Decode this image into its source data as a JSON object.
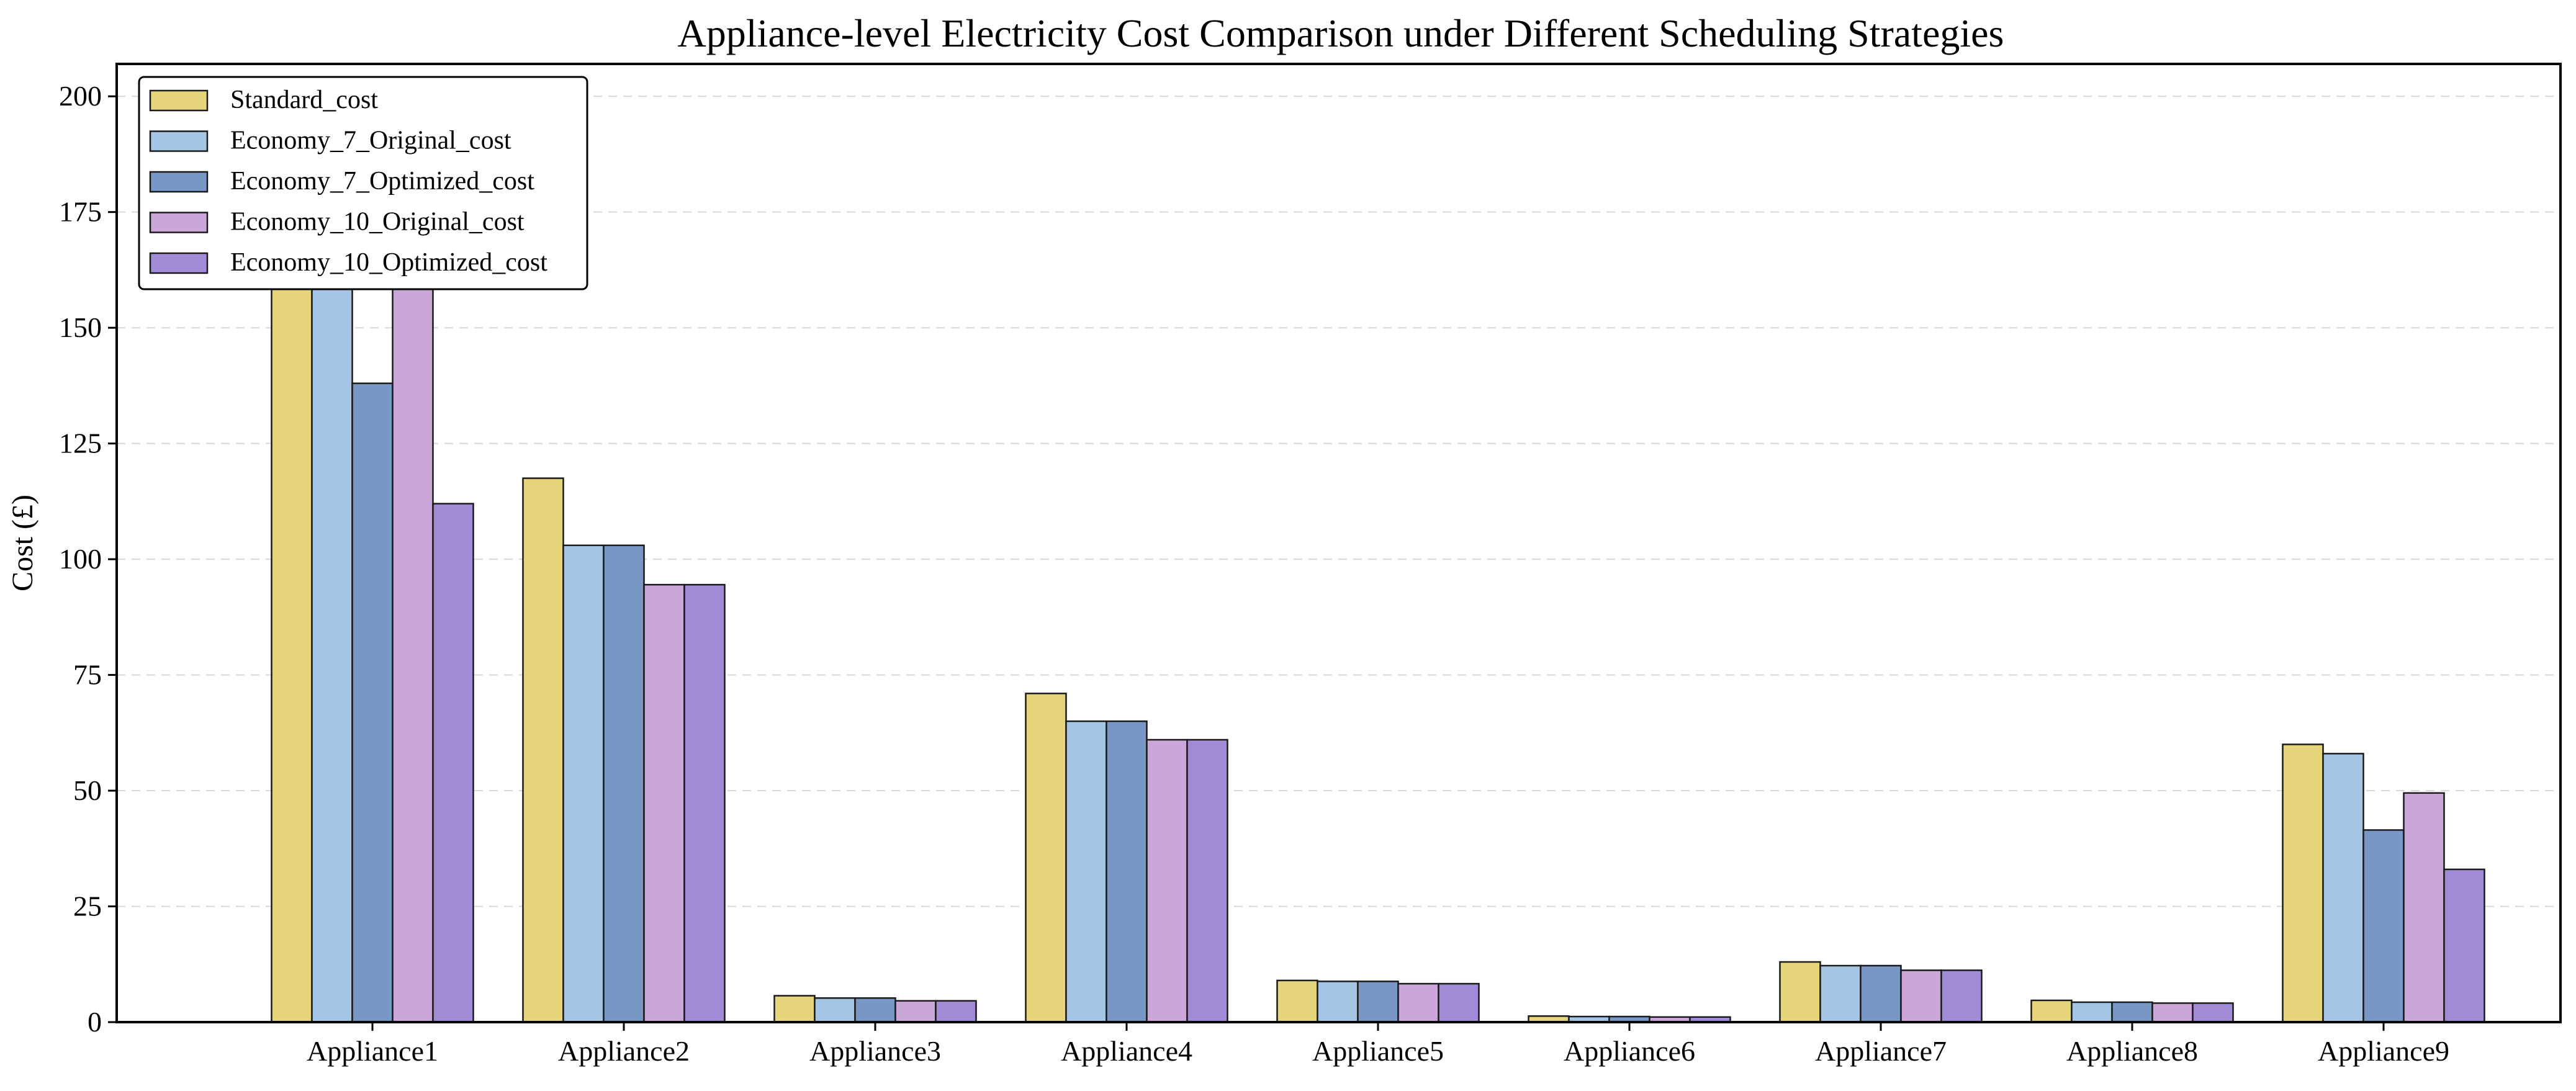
{
  "chart_data": {
    "type": "bar",
    "title": "Appliance-level Electricity Cost Comparison under Different Scheduling Strategies",
    "xlabel": "",
    "ylabel": "Cost (£)",
    "ylim": [
      0,
      207
    ],
    "yticks": [
      0,
      25,
      50,
      75,
      100,
      125,
      150,
      175,
      200
    ],
    "grid": "y dashed",
    "legend_position": "top-left",
    "categories": [
      "Appliance1",
      "Appliance2",
      "Appliance3",
      "Appliance4",
      "Appliance5",
      "Appliance6",
      "Appliance7",
      "Appliance8",
      "Appliance9"
    ],
    "series": [
      {
        "name": "Standard_cost",
        "color": "#e6d47a",
        "values": [
          195,
          117.5,
          5.7,
          71,
          9,
          1.3,
          13,
          4.7,
          60
        ]
      },
      {
        "name": "Economy_7_Original_cost",
        "color": "#a3c5e3",
        "values": [
          170,
          103,
          5.2,
          65,
          8.8,
          1.2,
          12.2,
          4.3,
          58
        ]
      },
      {
        "name": "Economy_7_Optimized_cost",
        "color": "#7897c4",
        "values": [
          138,
          103,
          5.2,
          65,
          8.8,
          1.2,
          12.2,
          4.3,
          41.5
        ]
      },
      {
        "name": "Economy_10_Original_cost",
        "color": "#cba6d9",
        "values": [
          165,
          94.5,
          4.6,
          61,
          8.3,
          1.1,
          11.2,
          4.1,
          49.5
        ]
      },
      {
        "name": "Economy_10_Optimized_cost",
        "color": "#a18bd6",
        "values": [
          112,
          94.5,
          4.6,
          61,
          8.3,
          1.1,
          11.2,
          4.1,
          33
        ]
      }
    ]
  }
}
